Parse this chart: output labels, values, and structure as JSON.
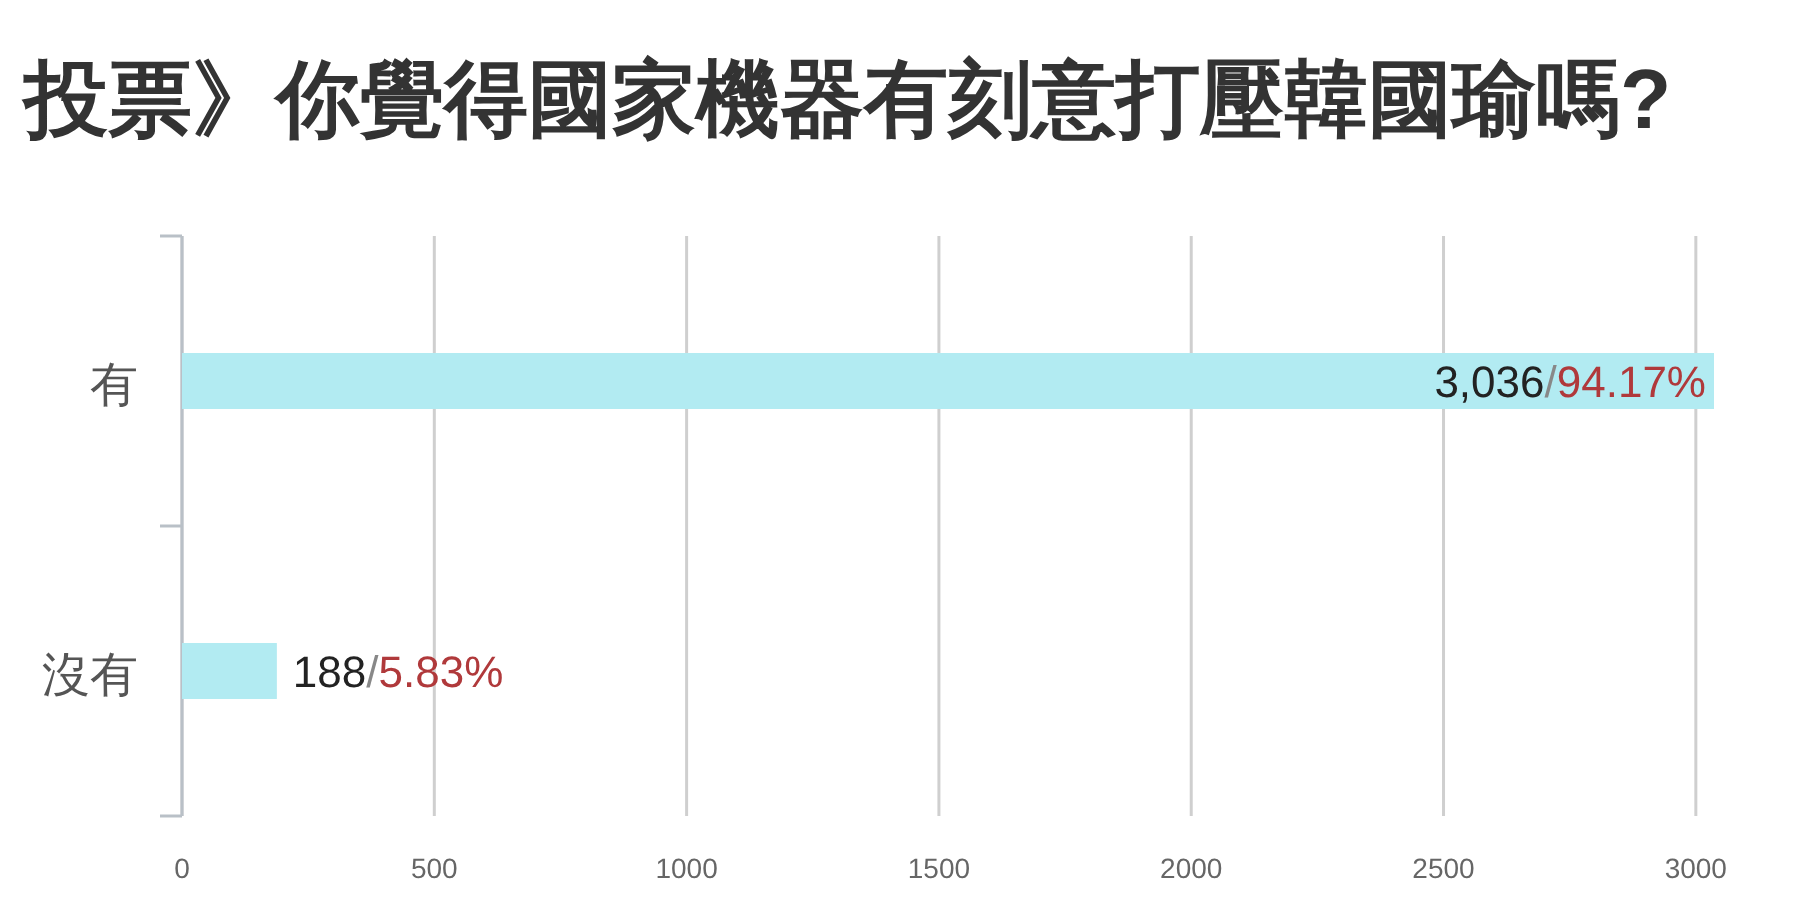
{
  "chart_data": {
    "type": "bar",
    "orientation": "horizontal",
    "title": "投票》你覺得國家機器有刻意打壓韓國瑜嗎?",
    "categories": [
      "有",
      "沒有"
    ],
    "values": [
      3036,
      188
    ],
    "color": "#b2ebf2",
    "value_labels": [
      "3,036/94.17%",
      "188/5.83%"
    ],
    "xlim": [
      0,
      3036
    ],
    "xticks": [
      0,
      500,
      1000,
      1500,
      2000,
      2500,
      3000
    ],
    "grid": "x"
  }
}
